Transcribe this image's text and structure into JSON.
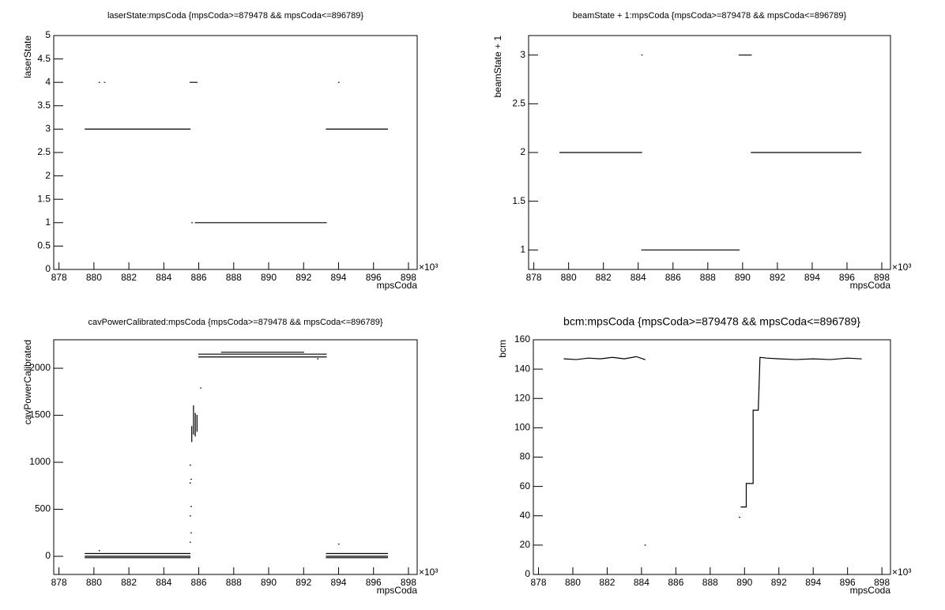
{
  "chart_data": [
    {
      "type": "line",
      "title": "laserState:mpsCoda {mpsCoda>=879478 && mpsCoda<=896789}",
      "x_label": "mpsCoda",
      "y_label": "laserState",
      "x_multiplier": "×10³",
      "color": "#000000",
      "xlim": [
        877.7,
        898.5
      ],
      "xticks": [
        878,
        880,
        882,
        884,
        886,
        888,
        890,
        892,
        894,
        896,
        898
      ],
      "ylim": [
        0,
        5
      ],
      "yticks": [
        0,
        0.5,
        1,
        1.5,
        2,
        2.5,
        3,
        3.5,
        4,
        4.5,
        5
      ],
      "x": [
        879.5,
        885.5,
        null,
        880.3,
        null,
        880.6,
        null,
        885.5,
        885.9,
        null,
        885.6,
        null,
        885.8,
        893.3,
        null,
        893.3,
        896.8,
        null,
        894.0
      ],
      "values": [
        3,
        3,
        null,
        4,
        null,
        4,
        null,
        4,
        4,
        null,
        1,
        null,
        1,
        1,
        null,
        3,
        3,
        null,
        4
      ]
    },
    {
      "type": "line",
      "title": "beamState + 1:mpsCoda {mpsCoda>=879478 && mpsCoda<=896789}",
      "x_label": "mpsCoda",
      "y_label": "beamState + 1",
      "x_multiplier": "×10³",
      "color": "#000000",
      "xlim": [
        877.7,
        898.5
      ],
      "xticks": [
        878,
        880,
        882,
        884,
        886,
        888,
        890,
        892,
        894,
        896,
        898
      ],
      "ylim": [
        0.8,
        3.2
      ],
      "yticks": [
        1,
        1.5,
        2,
        2.5,
        3
      ],
      "x": [
        879.5,
        884.2,
        null,
        884.2,
        null,
        884.2,
        889.8,
        null,
        889.8,
        890.5,
        null,
        890.5,
        896.8
      ],
      "values": [
        2,
        2,
        null,
        3,
        null,
        1,
        1,
        null,
        3,
        3,
        null,
        2,
        2
      ]
    },
    {
      "type": "line",
      "title": "cavPowerCalibrated:mpsCoda {mpsCoda>=879478 && mpsCoda<=896789}",
      "x_label": "mpsCoda",
      "y_label": "cavPowerCalibrated",
      "x_multiplier": "×10³",
      "color": "#000000",
      "xlim": [
        877.7,
        898.5
      ],
      "xticks": [
        878,
        880,
        882,
        884,
        886,
        888,
        890,
        892,
        894,
        896,
        898
      ],
      "ylim": [
        -193,
        2303
      ],
      "yticks": [
        0,
        500,
        1000,
        1500,
        2000
      ],
      "x": [
        879.5,
        885.5,
        null,
        879.5,
        885.5,
        null,
        879.5,
        885.5,
        null,
        880.3,
        null,
        885.5,
        null,
        885.55,
        null,
        885.5,
        null,
        885.55,
        null,
        885.5,
        null,
        885.55,
        null,
        885.5,
        null,
        885.6,
        885.6,
        null,
        885.7,
        885.7,
        null,
        885.8,
        885.8,
        null,
        885.9,
        885.9,
        null,
        886.1,
        null,
        886.0,
        893.3,
        null,
        886.0,
        893.3,
        null,
        887.3,
        892.0,
        null,
        892.8,
        null,
        893.3,
        896.8,
        null,
        893.3,
        896.8,
        null,
        893.3,
        896.8,
        null,
        894.0
      ],
      "values": [
        30,
        30,
        null,
        0,
        0,
        null,
        -15,
        -15,
        null,
        60,
        null,
        150,
        null,
        250,
        null,
        430,
        null,
        530,
        null,
        780,
        null,
        820,
        null,
        970,
        null,
        1220,
        1380,
        null,
        1300,
        1600,
        null,
        1280,
        1520,
        null,
        1330,
        1500,
        null,
        1790,
        null,
        2150,
        2150,
        null,
        2120,
        2120,
        null,
        2170,
        2170,
        null,
        2100,
        null,
        30,
        30,
        null,
        0,
        0,
        null,
        -15,
        -15,
        null,
        130
      ]
    },
    {
      "type": "line",
      "title": "bcm:mpsCoda {mpsCoda>=879478 && mpsCoda<=896789}",
      "x_label": "mpsCoda",
      "y_label": "bcm",
      "x_multiplier": "×10³",
      "color": "#000000",
      "xlim": [
        877.7,
        898.5
      ],
      "xticks": [
        878,
        880,
        882,
        884,
        886,
        888,
        890,
        892,
        894,
        896,
        898
      ],
      "ylim": [
        0,
        160
      ],
      "yticks": [
        0,
        20,
        40,
        60,
        80,
        100,
        120,
        140,
        160
      ],
      "x": [
        879.5,
        880.2,
        880.9,
        881.6,
        882.3,
        883.0,
        883.7,
        884.2,
        null,
        884.2,
        null,
        889.7,
        null,
        889.8,
        890.1,
        890.1,
        890.5,
        890.5,
        890.8,
        890.9,
        891.3,
        892.0,
        893.0,
        894.0,
        895.0,
        896.0,
        896.8
      ],
      "values": [
        147,
        146.5,
        147.5,
        147,
        148,
        147,
        148.5,
        146.5,
        null,
        20,
        null,
        39,
        null,
        46,
        46,
        62,
        62,
        112,
        112,
        148,
        147.5,
        147,
        146.5,
        147,
        146.5,
        147.5,
        147
      ]
    }
  ]
}
